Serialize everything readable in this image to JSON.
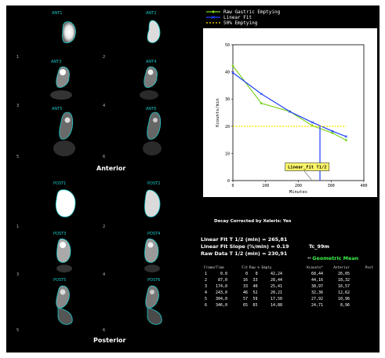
{
  "anterior": {
    "section_label": "Anterior",
    "frames": [
      {
        "label": "ANT1",
        "num": "1"
      },
      {
        "label": "ANT2",
        "num": "2"
      },
      {
        "label": "ANT3",
        "num": "3"
      },
      {
        "label": "ANT4",
        "num": "4"
      },
      {
        "label": "ANT5",
        "num": "5"
      },
      {
        "label": "ANT6",
        "num": "6"
      }
    ]
  },
  "posterior": {
    "section_label": "Posterior",
    "frames": [
      {
        "label": "POST1",
        "num": "1"
      },
      {
        "label": "POST2",
        "num": "2"
      },
      {
        "label": "POST3",
        "num": "3"
      },
      {
        "label": "POST4",
        "num": "4"
      },
      {
        "label": "POST5",
        "num": "5"
      },
      {
        "label": "POST6",
        "num": "6"
      }
    ]
  },
  "chart_data": {
    "type": "line",
    "xlabel": "Minutes",
    "ylabel": "Kcounts/min",
    "xlim": [
      0,
      400
    ],
    "ylim": [
      0,
      50
    ],
    "x_ticks": [
      "0",
      "100",
      "200",
      "300",
      "400"
    ],
    "y_ticks": [
      "0",
      "10",
      "20",
      "30",
      "40",
      "50"
    ],
    "legend_position": "top",
    "annotation": "Linear_fit T1/2",
    "series": [
      {
        "name": "Raw Gastric Emptying",
        "color": "#7ed321",
        "x": [
          0,
          87,
          174,
          243,
          304,
          346
        ],
        "y": [
          42.24,
          28.44,
          25.41,
          20.21,
          17.5,
          14.88
        ]
      },
      {
        "name": "Linear Fit",
        "color": "#1f3fff",
        "x": [
          0,
          87,
          174,
          243,
          304,
          346
        ],
        "y": [
          39.7,
          31.9,
          25.4,
          21.4,
          18.2,
          16.2
        ]
      },
      {
        "name": "50% Emptying",
        "color": "#ffe600",
        "x": [
          0,
          346
        ],
        "y": [
          20,
          20
        ]
      }
    ],
    "t_half_marker_x": 266
  },
  "decay_text": "Decay Corrected by Xeleris: Yes",
  "stats": {
    "linear_fit_t_half": "Linear Fit T 1/2 (min) = 265,81",
    "linear_fit_slope": "Linear Fit Slope (%/min) = 0.19",
    "raw_data_t_half": "Raw Data T 1/2 (min) = 230,91",
    "isotope": "Tc_99m",
    "geometric_mean_label": "Geometric Mean"
  },
  "table": {
    "headers": [
      "Frame/Time",
      "Fit",
      "Raw % Empty",
      "Kcounts*",
      "Anterior",
      "Post"
    ],
    "rows": [
      [
        "1",
        "0.0",
        "0",
        "0",
        "42,24",
        "68,44",
        "26,05"
      ],
      [
        "2",
        "87,0",
        "16",
        "33",
        "28,44",
        "44,16",
        "18,32"
      ],
      [
        "3",
        "174,0",
        "33",
        "40",
        "25,41",
        "38,97",
        "16,57"
      ],
      [
        "4",
        "243,0",
        "46",
        "52",
        "20,21",
        "32,36",
        "12,62"
      ],
      [
        "5",
        "304,0",
        "57",
        "59",
        "17,50",
        "27,92",
        "10,96"
      ],
      [
        "6",
        "346,0",
        "65",
        "65",
        "14,88",
        "24,71",
        "8,96"
      ]
    ]
  }
}
